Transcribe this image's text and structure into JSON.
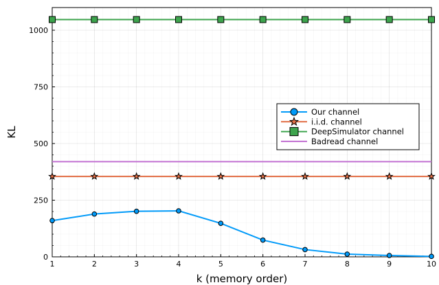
{
  "chart_data": {
    "type": "line",
    "title": "",
    "xlabel": "k (memory order)",
    "ylabel": "KL",
    "xlim": [
      1,
      10
    ],
    "ylim": [
      0,
      1100
    ],
    "xticks": [
      1,
      2,
      3,
      4,
      5,
      6,
      7,
      8,
      9,
      10
    ],
    "yticks": [
      0,
      250,
      500,
      750,
      1000
    ],
    "grid": true,
    "legend_position": "right",
    "series": [
      {
        "name": "Our channel",
        "color": "#009af9",
        "marker": "circle",
        "x": [
          1,
          2,
          3,
          4,
          5,
          6,
          7,
          8,
          9,
          10
        ],
        "y": [
          160,
          189,
          201,
          203,
          148,
          74,
          32,
          12,
          6,
          2
        ]
      },
      {
        "name": "i.i.d. channel",
        "color": "#e26f46",
        "marker": "star",
        "x": [
          1,
          2,
          3,
          4,
          5,
          6,
          7,
          8,
          9,
          10
        ],
        "y": [
          355,
          355,
          355,
          355,
          355,
          355,
          355,
          355,
          355,
          355
        ]
      },
      {
        "name": "DeepSimulator channel",
        "color": "#3da44d",
        "marker": "square",
        "x": [
          1,
          2,
          3,
          4,
          5,
          6,
          7,
          8,
          9,
          10
        ],
        "y": [
          1047,
          1047,
          1047,
          1047,
          1047,
          1047,
          1047,
          1047,
          1047,
          1047
        ]
      },
      {
        "name": "Badread channel",
        "color": "#c271d2",
        "marker": "none",
        "x": [
          1,
          2,
          3,
          4,
          5,
          6,
          7,
          8,
          9,
          10
        ],
        "y": [
          420,
          420,
          420,
          420,
          420,
          420,
          420,
          420,
          420,
          420
        ]
      }
    ]
  }
}
